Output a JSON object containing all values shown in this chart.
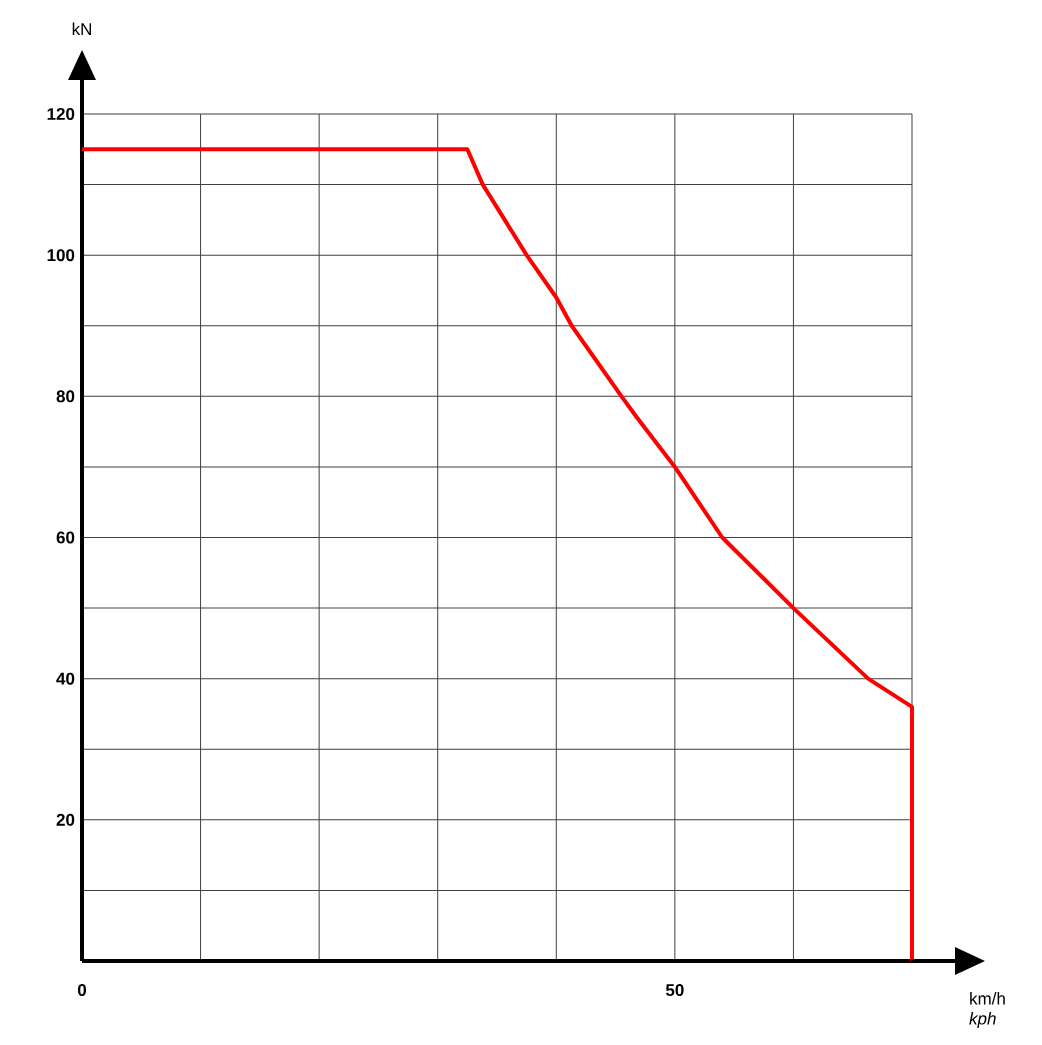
{
  "chart_data": {
    "type": "line",
    "xlabel": "km/h *kph*",
    "ylabel": "kN",
    "x": [
      0,
      32.5,
      33.8,
      37.5,
      40,
      41.3,
      45.5,
      46.8,
      50,
      54,
      60,
      66.3,
      70,
      70
    ],
    "series": [
      {
        "color": "#ff0000",
        "values": [
          115,
          115,
          110,
          100,
          94,
          90,
          80,
          77,
          70,
          60,
          50,
          40,
          36,
          0
        ]
      }
    ],
    "xlim": [
      0,
      70
    ],
    "ylim": [
      0,
      120
    ],
    "xticks": [
      0,
      {
        "value": 10,
        "label": null
      },
      {
        "value": 20,
        "label": null
      },
      {
        "value": 30,
        "label": null
      },
      {
        "value": 40,
        "label": null
      },
      50,
      {
        "value": 60,
        "label": null
      },
      {
        "value": 70,
        "label": null
      }
    ],
    "yticks": [
      {
        "value": 10,
        "label": null
      },
      20,
      {
        "value": 30,
        "label": null
      },
      40,
      {
        "value": 50,
        "label": null
      },
      60,
      {
        "value": 70,
        "label": null
      },
      80,
      {
        "value": 90,
        "label": null
      },
      100,
      {
        "value": 110,
        "label": null
      },
      120
    ],
    "grid": true,
    "marker": "none",
    "line_style": "solid"
  }
}
